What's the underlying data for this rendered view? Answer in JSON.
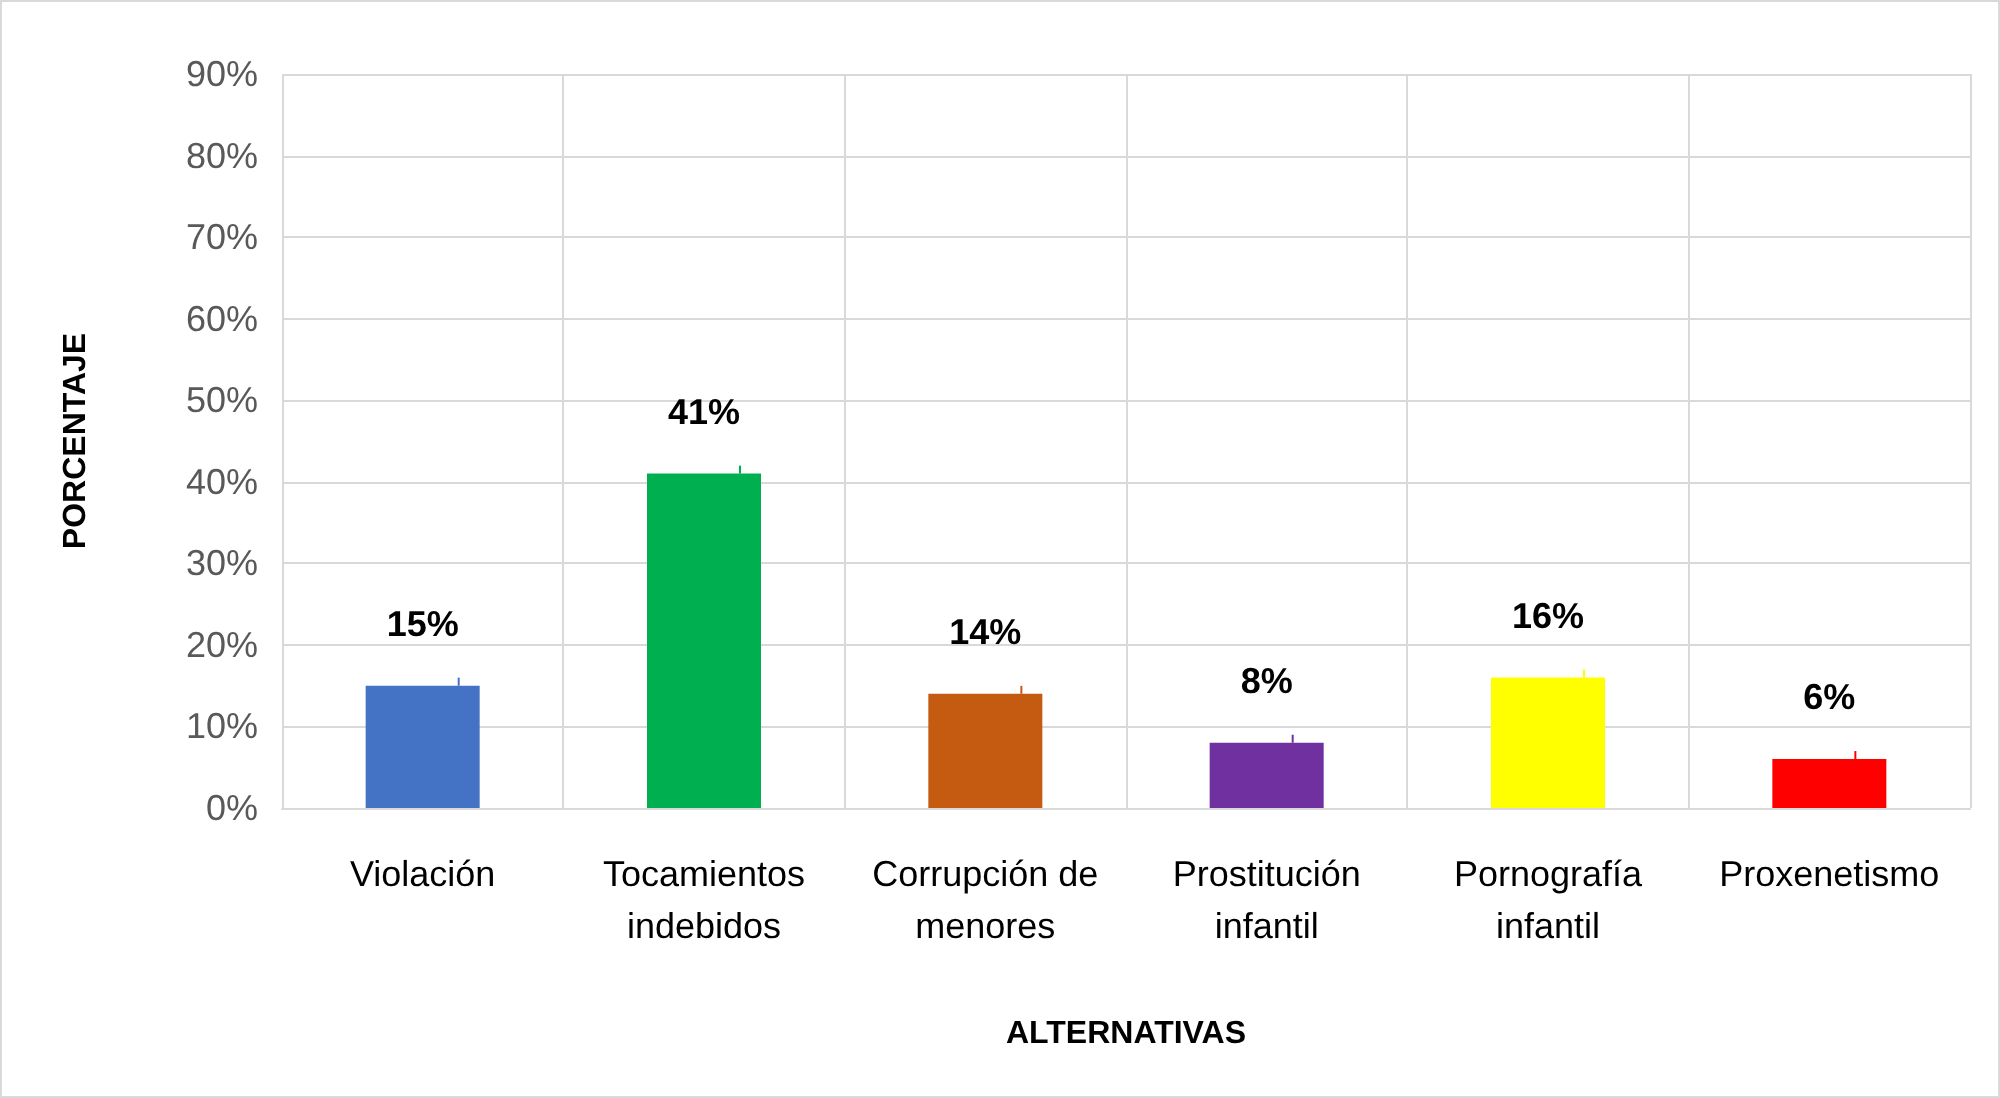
{
  "chart_data": {
    "type": "bar",
    "xlabel": "ALTERNATIVAS",
    "ylabel": "PORCENTAJE",
    "categories": [
      "Violación",
      "Tocamientos\nindebidos",
      "Corrupción de\nmenores",
      "Prostitución\ninfantil",
      "Pornografía\ninfantil",
      "Proxenetismo"
    ],
    "values": [
      15,
      41,
      14,
      8,
      16,
      6
    ],
    "colors": [
      "#4472c4",
      "#00b050",
      "#c55a11",
      "#7030a0",
      "#ffff00",
      "#ff0000"
    ],
    "value_labels": [
      "15%",
      "41%",
      "14%",
      "8%",
      "16%",
      "6%"
    ],
    "ylim": [
      0,
      90
    ],
    "yticks": [
      {
        "value": 0,
        "label": "0%"
      },
      {
        "value": 10,
        "label": "10%"
      },
      {
        "value": 20,
        "label": "20%"
      },
      {
        "value": 30,
        "label": "30%"
      },
      {
        "value": 40,
        "label": "40%"
      },
      {
        "value": 50,
        "label": "50%"
      },
      {
        "value": 60,
        "label": "60%"
      },
      {
        "value": 70,
        "label": "70%"
      },
      {
        "value": 80,
        "label": "80%"
      },
      {
        "value": 90,
        "label": "90%"
      }
    ],
    "grid": true
  }
}
